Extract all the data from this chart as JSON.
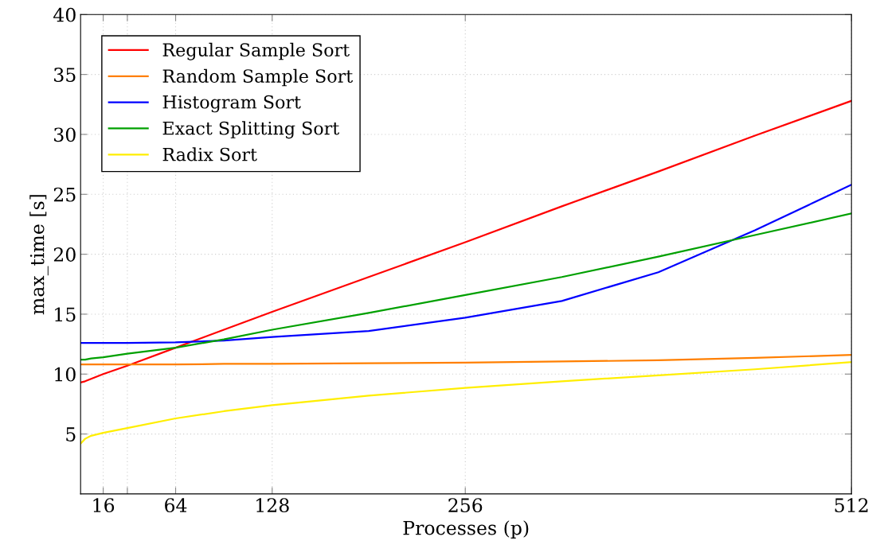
{
  "chart_data": {
    "type": "line",
    "xlabel": "Processes (p)",
    "ylabel": "max_time [s]",
    "x": [
      1,
      4,
      8,
      16,
      32,
      64,
      96,
      128,
      192,
      256,
      320,
      384,
      448,
      512
    ],
    "xlim": [
      1,
      512
    ],
    "xticks": [
      16,
      {
        "value": 32,
        "label": null
      },
      64,
      128,
      256,
      512
    ],
    "ylim": [
      0,
      40
    ],
    "yticks": [
      5,
      10,
      15,
      20,
      25,
      30,
      35,
      40
    ],
    "grid": true,
    "legend": "top left",
    "marker": "none",
    "line_style": "solid",
    "series": [
      {
        "name": "Regular Sample Sort",
        "color": "#ff0000",
        "values": [
          9.3,
          9.4,
          9.6,
          10.0,
          10.7,
          12.2,
          13.7,
          15.2,
          18.1,
          21.0,
          24.0,
          26.9,
          29.9,
          32.8
        ]
      },
      {
        "name": "Random Sample Sort",
        "color": "#ff7f00",
        "values": [
          10.8,
          10.8,
          10.8,
          10.8,
          10.8,
          10.8,
          10.85,
          10.85,
          10.9,
          10.95,
          11.05,
          11.15,
          11.35,
          11.6
        ]
      },
      {
        "name": "Histogram Sort",
        "color": "#0000ff",
        "values": [
          12.6,
          12.6,
          12.6,
          12.6,
          12.6,
          12.65,
          12.8,
          13.1,
          13.6,
          14.7,
          16.1,
          18.5,
          22.0,
          25.8
        ]
      },
      {
        "name": "Exact Splitting Sort",
        "color": "#00a000",
        "values": [
          11.2,
          11.2,
          11.3,
          11.4,
          11.7,
          12.2,
          12.9,
          13.7,
          15.1,
          16.6,
          18.1,
          19.8,
          21.6,
          23.4
        ]
      },
      {
        "name": "Radix Sort",
        "color": "#ffee00",
        "values": [
          4.2,
          4.6,
          4.85,
          5.1,
          5.5,
          6.3,
          6.9,
          7.4,
          8.2,
          8.85,
          9.4,
          9.9,
          10.4,
          11.0
        ]
      }
    ]
  }
}
